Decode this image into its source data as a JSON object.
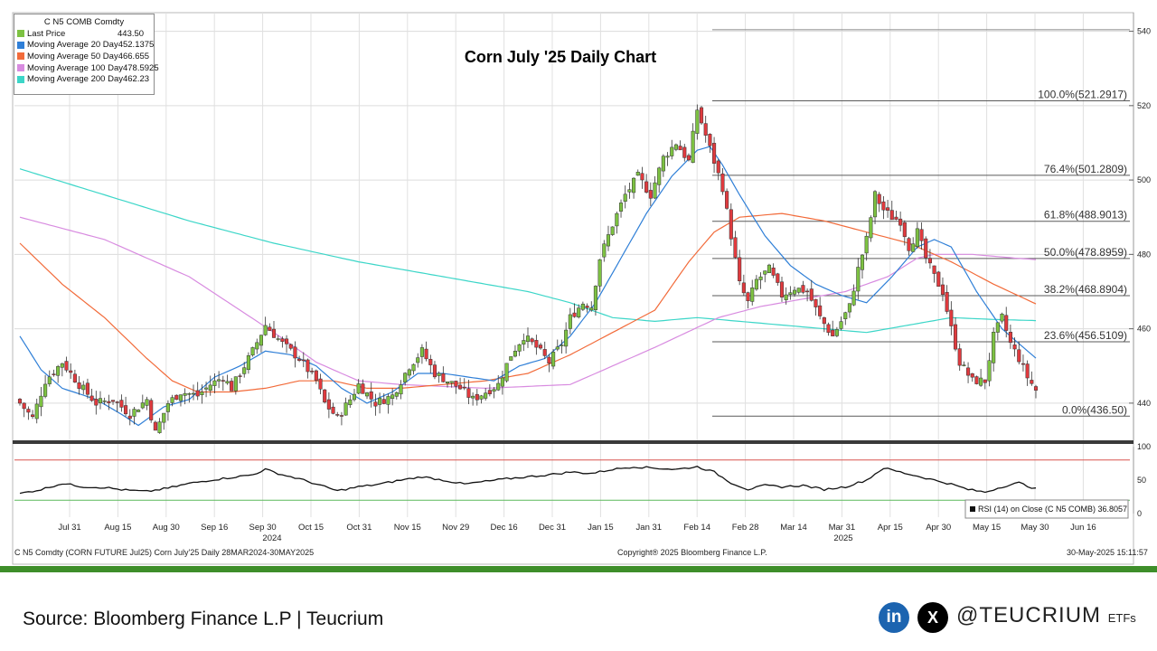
{
  "chart_data": {
    "type": "candlestick",
    "title": "Corn July '25 Daily Chart",
    "y_axis": {
      "ylim": [
        430,
        545
      ],
      "ticks": [
        440,
        460,
        480,
        500,
        520,
        540
      ],
      "position": "right"
    },
    "x_axis_labels": [
      "Jul 31",
      "Aug 15",
      "Aug 30",
      "Sep 16",
      "Sep 30",
      "Oct 15",
      "Oct 31",
      "Nov 15",
      "Nov 29",
      "Dec 16",
      "Dec 31",
      "Jan 15",
      "Jan 31",
      "Feb 14",
      "Feb 28",
      "Mar 14",
      "Mar 31",
      "Apr 15",
      "Apr 30",
      "May 15",
      "May 30",
      "Jun 16"
    ],
    "year_labels": [
      "2024",
      "2025"
    ],
    "legend": {
      "title": "C N5 COMB Comdty",
      "entries": [
        {
          "name": "Last Price",
          "value": "443.50",
          "color": "#7dc242"
        },
        {
          "name": "Moving Average 20 Day",
          "value": "452.1375",
          "color": "#2f7fd7"
        },
        {
          "name": "Moving Average 50 Day",
          "value": "466.655",
          "color": "#f26b3a"
        },
        {
          "name": "Moving Average 100 Day",
          "value": "478.5925",
          "color": "#d88be0"
        },
        {
          "name": "Moving Average 200 Day",
          "value": "462.23",
          "color": "#3cd6c8"
        }
      ]
    },
    "fibonacci": [
      {
        "label": "100.0%(521.2917)",
        "value": 521.2917
      },
      {
        "label": "76.4%(501.2809)",
        "value": 501.2809
      },
      {
        "label": "61.8%(488.9013)",
        "value": 488.9013
      },
      {
        "label": "50.0%(478.8959)",
        "value": 478.8959
      },
      {
        "label": "38.2%(468.8904)",
        "value": 468.8904
      },
      {
        "label": "23.6%(456.5109)",
        "value": 456.5109
      },
      {
        "label": "0.0%(436.50)",
        "value": 436.5
      }
    ],
    "close_anchors": [
      [
        0,
        440
      ],
      [
        3,
        436
      ],
      [
        6,
        446
      ],
      [
        10,
        451
      ],
      [
        14,
        445
      ],
      [
        18,
        440
      ],
      [
        22,
        441
      ],
      [
        26,
        437
      ],
      [
        30,
        441
      ],
      [
        32,
        432
      ],
      [
        35,
        440
      ],
      [
        38,
        443
      ],
      [
        42,
        442
      ],
      [
        45,
        445
      ],
      [
        48,
        447
      ],
      [
        50,
        444
      ],
      [
        55,
        454
      ],
      [
        58,
        461
      ],
      [
        62,
        456
      ],
      [
        66,
        452
      ],
      [
        70,
        446
      ],
      [
        72,
        440
      ],
      [
        75,
        436
      ],
      [
        78,
        441
      ],
      [
        80,
        445
      ],
      [
        84,
        440
      ],
      [
        88,
        442
      ],
      [
        92,
        450
      ],
      [
        95,
        454
      ],
      [
        98,
        448
      ],
      [
        101,
        446
      ],
      [
        104,
        444
      ],
      [
        107,
        441
      ],
      [
        110,
        443
      ],
      [
        113,
        445
      ],
      [
        116,
        453
      ],
      [
        119,
        458
      ],
      [
        122,
        455
      ],
      [
        125,
        451
      ],
      [
        128,
        456
      ],
      [
        130,
        463
      ],
      [
        133,
        467
      ],
      [
        135,
        466
      ],
      [
        137,
        479
      ],
      [
        140,
        488
      ],
      [
        143,
        496
      ],
      [
        146,
        501
      ],
      [
        149,
        496
      ],
      [
        152,
        506
      ],
      [
        155,
        510
      ],
      [
        158,
        505
      ],
      [
        160,
        519
      ],
      [
        162,
        512
      ],
      [
        164,
        505
      ],
      [
        166,
        498
      ],
      [
        168,
        485
      ],
      [
        170,
        472
      ],
      [
        172,
        467
      ],
      [
        174,
        473
      ],
      [
        177,
        476
      ],
      [
        180,
        469
      ],
      [
        183,
        471
      ],
      [
        186,
        470
      ],
      [
        189,
        463
      ],
      [
        192,
        458
      ],
      [
        194,
        462
      ],
      [
        196,
        466
      ],
      [
        198,
        476
      ],
      [
        200,
        484
      ],
      [
        202,
        496
      ],
      [
        204,
        492
      ],
      [
        206,
        490
      ],
      [
        208,
        489
      ],
      [
        210,
        482
      ],
      [
        212,
        486
      ],
      [
        214,
        479
      ],
      [
        216,
        474
      ],
      [
        218,
        470
      ],
      [
        220,
        460
      ],
      [
        222,
        451
      ],
      [
        225,
        446
      ],
      [
        228,
        446
      ],
      [
        230,
        458
      ],
      [
        232,
        463
      ],
      [
        234,
        456
      ],
      [
        236,
        452
      ],
      [
        238,
        447
      ],
      [
        240,
        443.5
      ]
    ],
    "ma_anchors": {
      "ma20": [
        [
          0,
          458
        ],
        [
          5,
          449
        ],
        [
          10,
          444
        ],
        [
          18,
          441
        ],
        [
          24,
          437
        ],
        [
          28,
          434
        ],
        [
          34,
          439
        ],
        [
          40,
          441
        ],
        [
          46,
          447
        ],
        [
          52,
          450
        ],
        [
          58,
          454
        ],
        [
          64,
          453
        ],
        [
          70,
          450
        ],
        [
          76,
          444
        ],
        [
          82,
          440
        ],
        [
          88,
          443
        ],
        [
          94,
          448
        ],
        [
          100,
          448
        ],
        [
          106,
          447
        ],
        [
          112,
          446
        ],
        [
          118,
          450
        ],
        [
          124,
          452
        ],
        [
          130,
          458
        ],
        [
          136,
          467
        ],
        [
          142,
          479
        ],
        [
          148,
          491
        ],
        [
          154,
          501
        ],
        [
          160,
          508
        ],
        [
          163,
          509
        ],
        [
          166,
          504
        ],
        [
          170,
          496
        ],
        [
          176,
          485
        ],
        [
          182,
          477
        ],
        [
          188,
          472
        ],
        [
          194,
          469
        ],
        [
          200,
          467
        ],
        [
          206,
          474
        ],
        [
          212,
          482
        ],
        [
          216,
          484
        ],
        [
          220,
          482
        ],
        [
          226,
          470
        ],
        [
          232,
          460
        ],
        [
          236,
          456
        ],
        [
          240,
          452.1
        ]
      ],
      "ma50": [
        [
          0,
          483
        ],
        [
          10,
          472
        ],
        [
          20,
          463
        ],
        [
          30,
          452
        ],
        [
          36,
          446
        ],
        [
          42,
          443
        ],
        [
          50,
          443
        ],
        [
          58,
          444
        ],
        [
          66,
          446
        ],
        [
          74,
          446
        ],
        [
          82,
          444
        ],
        [
          90,
          444
        ],
        [
          100,
          445
        ],
        [
          110,
          446
        ],
        [
          120,
          448
        ],
        [
          130,
          453
        ],
        [
          140,
          459
        ],
        [
          150,
          465
        ],
        [
          158,
          478
        ],
        [
          164,
          486
        ],
        [
          170,
          490
        ],
        [
          180,
          491
        ],
        [
          190,
          489
        ],
        [
          200,
          486
        ],
        [
          210,
          483
        ],
        [
          220,
          478
        ],
        [
          230,
          472
        ],
        [
          240,
          466.7
        ]
      ],
      "ma100": [
        [
          0,
          490
        ],
        [
          20,
          484
        ],
        [
          40,
          474
        ],
        [
          60,
          459
        ],
        [
          70,
          451
        ],
        [
          80,
          446
        ],
        [
          90,
          445
        ],
        [
          110,
          444
        ],
        [
          130,
          445
        ],
        [
          150,
          455
        ],
        [
          165,
          463
        ],
        [
          175,
          466
        ],
        [
          185,
          468
        ],
        [
          195,
          470
        ],
        [
          205,
          474
        ],
        [
          212,
          479
        ],
        [
          216,
          480
        ],
        [
          225,
          480
        ],
        [
          235,
          479
        ],
        [
          240,
          478.6
        ]
      ],
      "ma200": [
        [
          0,
          503
        ],
        [
          20,
          496
        ],
        [
          40,
          489
        ],
        [
          60,
          483
        ],
        [
          80,
          478
        ],
        [
          100,
          474
        ],
        [
          120,
          470
        ],
        [
          130,
          467
        ],
        [
          140,
          463
        ],
        [
          150,
          462
        ],
        [
          160,
          463
        ],
        [
          170,
          462
        ],
        [
          180,
          461
        ],
        [
          190,
          460
        ],
        [
          200,
          459
        ],
        [
          210,
          461
        ],
        [
          220,
          463
        ],
        [
          230,
          462.5
        ],
        [
          240,
          462.2
        ]
      ]
    },
    "rsi": {
      "label": "RSI (14)  on Close (C N5 COMB) 36.8057",
      "value": 36.8057,
      "ylim": [
        0,
        100
      ],
      "ticks": [
        0,
        50,
        100
      ],
      "overbought": 80,
      "oversold": 20,
      "anchors": [
        [
          0,
          30
        ],
        [
          5,
          36
        ],
        [
          10,
          45
        ],
        [
          15,
          40
        ],
        [
          20,
          39
        ],
        [
          25,
          35
        ],
        [
          30,
          33
        ],
        [
          35,
          38
        ],
        [
          40,
          45
        ],
        [
          45,
          50
        ],
        [
          50,
          54
        ],
        [
          55,
          58
        ],
        [
          58,
          66
        ],
        [
          62,
          58
        ],
        [
          66,
          52
        ],
        [
          70,
          44
        ],
        [
          75,
          34
        ],
        [
          80,
          40
        ],
        [
          85,
          44
        ],
        [
          90,
          50
        ],
        [
          95,
          55
        ],
        [
          100,
          50
        ],
        [
          105,
          44
        ],
        [
          110,
          48
        ],
        [
          115,
          52
        ],
        [
          120,
          55
        ],
        [
          125,
          58
        ],
        [
          130,
          62
        ],
        [
          135,
          60
        ],
        [
          140,
          66
        ],
        [
          145,
          70
        ],
        [
          150,
          68
        ],
        [
          155,
          66
        ],
        [
          160,
          70
        ],
        [
          164,
          62
        ],
        [
          168,
          46
        ],
        [
          172,
          36
        ],
        [
          176,
          42
        ],
        [
          180,
          40
        ],
        [
          185,
          42
        ],
        [
          190,
          36
        ],
        [
          195,
          40
        ],
        [
          200,
          50
        ],
        [
          204,
          68
        ],
        [
          208,
          62
        ],
        [
          212,
          56
        ],
        [
          216,
          50
        ],
        [
          220,
          44
        ],
        [
          224,
          36
        ],
        [
          228,
          32
        ],
        [
          232,
          40
        ],
        [
          236,
          46
        ],
        [
          240,
          36.8
        ]
      ]
    },
    "grid": true
  },
  "footer": {
    "left": "C N5 Comdty (CORN FUTURE     Jul25) Corn July'25  Daily 28MAR2024-30MAY2025",
    "center": "Copyright® 2025 Bloomberg Finance L.P.",
    "right": "30-May-2025 15:11:57"
  },
  "source": "Source: Bloomberg Finance L.P | Teucrium",
  "social": {
    "linkedin": "in",
    "x": "X"
  },
  "handle": {
    "name": "@TEUCRIUM",
    "suffix": "ETFs"
  }
}
